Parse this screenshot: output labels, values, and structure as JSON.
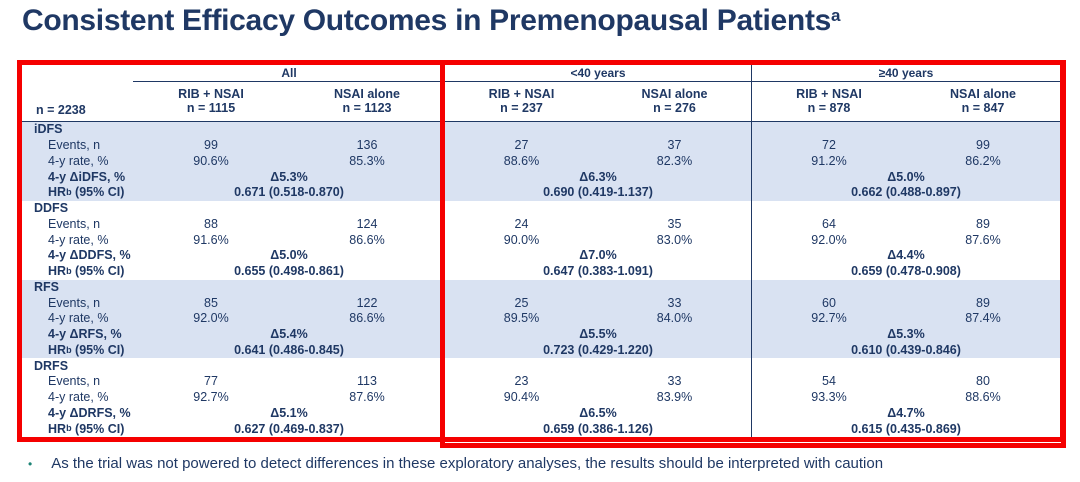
{
  "title": {
    "text": "Consistent Efficacy Outcomes in Premenopausal Patients",
    "sup": "a"
  },
  "colors": {
    "navy_text": "#1F3864",
    "shade_blue": "#D9E2F2",
    "highlight_red": "#F50000",
    "bullet_teal": "#1E8476"
  },
  "header": {
    "n_total": "n = 2238",
    "groups": [
      {
        "label": "All",
        "arm1": "RIB + NSAI",
        "arm1_n": "n = 1115",
        "arm2": "NSAI alone",
        "arm2_n": "n = 1123"
      },
      {
        "label": "<40 years",
        "arm1": "RIB + NSAI",
        "arm1_n": "n = 237",
        "arm2": "NSAI alone",
        "arm2_n": "n = 276"
      },
      {
        "label": "≥40 years",
        "arm1": "RIB + NSAI",
        "arm1_n": "n = 878",
        "arm2": "NSAI alone",
        "arm2_n": "n = 847"
      }
    ]
  },
  "row_labels": {
    "events": "Events, n",
    "rate": "4-y rate, %",
    "hr_prefix": "HR",
    "hr_sup": "b",
    "hr_suffix": " (95% CI)"
  },
  "sections": [
    {
      "name": "iDFS",
      "delta_label": "4-y ΔiDFS, %",
      "events": [
        "99",
        "136",
        "27",
        "37",
        "72",
        "99"
      ],
      "rates": [
        "90.6%",
        "85.3%",
        "88.6%",
        "82.3%",
        "91.2%",
        "86.2%"
      ],
      "deltas": [
        "Δ5.3%",
        "Δ6.3%",
        "Δ5.0%"
      ],
      "hrs": [
        "0.671 (0.518-0.870)",
        "0.690 (0.419-1.137)",
        "0.662 (0.488-0.897)"
      ]
    },
    {
      "name": "DDFS",
      "delta_label": "4-y ΔDDFS, %",
      "events": [
        "88",
        "124",
        "24",
        "35",
        "64",
        "89"
      ],
      "rates": [
        "91.6%",
        "86.6%",
        "90.0%",
        "83.0%",
        "92.0%",
        "87.6%"
      ],
      "deltas": [
        "Δ5.0%",
        "Δ7.0%",
        "Δ4.4%"
      ],
      "hrs": [
        "0.655 (0.498-0.861)",
        "0.647 (0.383-1.091)",
        "0.659 (0.478-0.908)"
      ]
    },
    {
      "name": "RFS",
      "delta_label": "4-y ΔRFS, %",
      "events": [
        "85",
        "122",
        "25",
        "33",
        "60",
        "89"
      ],
      "rates": [
        "92.0%",
        "86.6%",
        "89.5%",
        "84.0%",
        "92.7%",
        "87.4%"
      ],
      "deltas": [
        "Δ5.4%",
        "Δ5.5%",
        "Δ5.3%"
      ],
      "hrs": [
        "0.641 (0.486-0.845)",
        "0.723 (0.429-1.220)",
        "0.610 (0.439-0.846)"
      ]
    },
    {
      "name": "DRFS",
      "delta_label": "4-y ΔDRFS, %",
      "events": [
        "77",
        "113",
        "23",
        "33",
        "54",
        "80"
      ],
      "rates": [
        "92.7%",
        "87.6%",
        "90.4%",
        "83.9%",
        "93.3%",
        "88.6%"
      ],
      "deltas": [
        "Δ5.1%",
        "Δ6.5%",
        "Δ4.7%"
      ],
      "hrs": [
        "0.627 (0.469-0.837)",
        "0.659 (0.386-1.126)",
        "0.615 (0.435-0.869)"
      ]
    }
  ],
  "footnote": "As the trial was not powered to detect differences in these exploratory analyses, the results should be interpreted with caution"
}
